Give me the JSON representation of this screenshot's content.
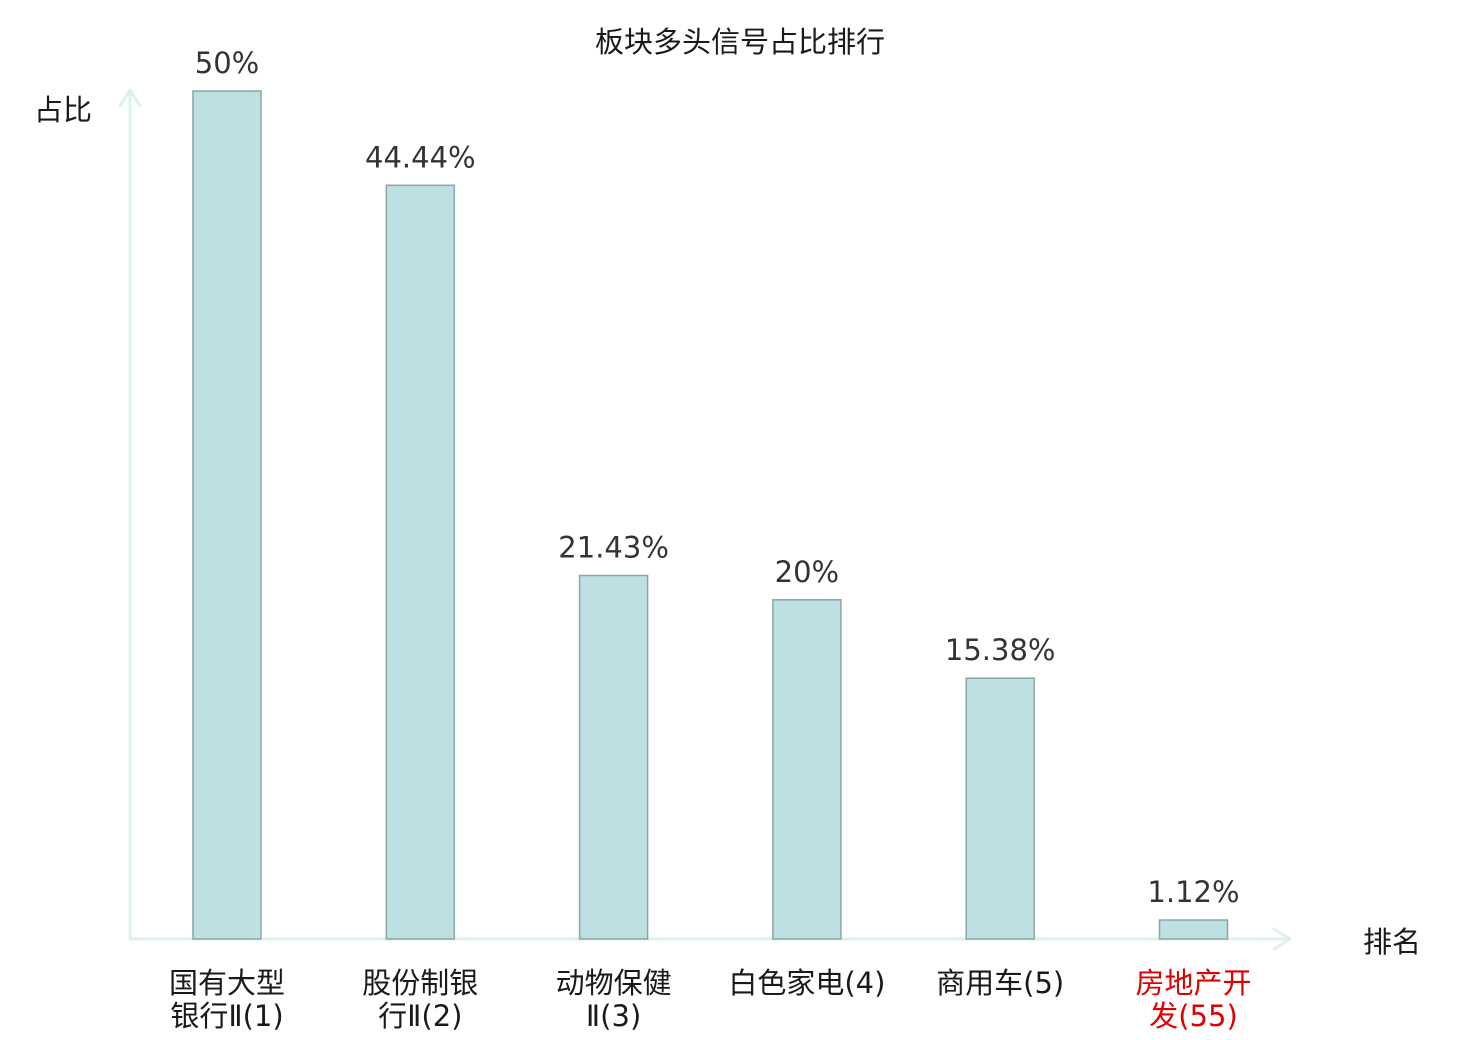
{
  "chart_data": {
    "type": "bar",
    "title": "板块多头信号占比排行",
    "ylabel": "占比",
    "xlabel": "排名",
    "categories": [
      [
        "国有大型",
        "银行Ⅱ(1)"
      ],
      [
        "股份制银",
        "行Ⅱ(2)"
      ],
      [
        "动物保健",
        "Ⅱ(3)"
      ],
      [
        "白色家电(4)"
      ],
      [
        "商用车(5)"
      ],
      [
        "房地产开",
        "发(55)"
      ]
    ],
    "values": [
      50,
      44.44,
      21.43,
      20,
      15.38,
      1.12
    ],
    "value_labels": [
      "50%",
      "44.44%",
      "21.43%",
      "20%",
      "15.38%",
      "1.12%"
    ],
    "highlight_index": 5,
    "ylim": [
      0,
      50
    ],
    "grid": false,
    "legend": "none"
  },
  "colors": {
    "bar_fill": "#bde0e3",
    "bar_stroke": "#8aa6a8",
    "axis": "#ddf0ee",
    "label": "#1a1a1a",
    "highlight": "#e00000"
  }
}
